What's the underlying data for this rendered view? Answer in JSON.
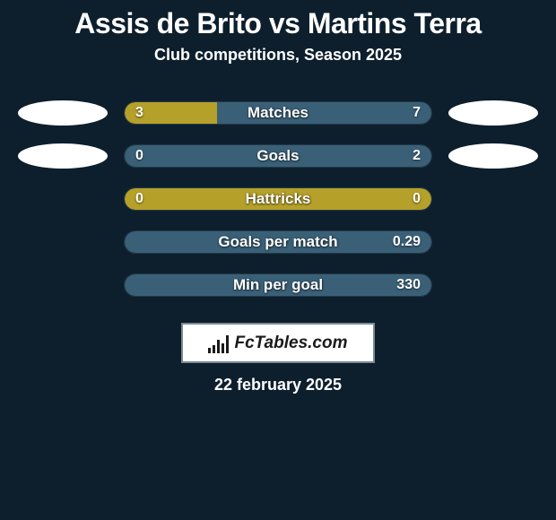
{
  "title": "Assis de Brito vs Martins Terra",
  "subtitle": "Club competitions, Season 2025",
  "background_color": "#0d1f2d",
  "left_color": "#b5a029",
  "right_color": "#3a6078",
  "track_border": "#233846",
  "text_color": "#ffffff",
  "title_fontsize": 32,
  "subtitle_fontsize": 18,
  "bar_label_fontsize": 17,
  "bar_value_fontsize": 16,
  "rows": [
    {
      "label": "Matches",
      "left_val": "3",
      "right_val": "7",
      "left_pct": 30,
      "right_pct": 70,
      "show_avatars": true
    },
    {
      "label": "Goals",
      "left_val": "0",
      "right_val": "2",
      "left_pct": 0,
      "right_pct": 100,
      "show_avatars": true
    },
    {
      "label": "Hattricks",
      "left_val": "0",
      "right_val": "0",
      "left_pct": 100,
      "right_pct": 0,
      "show_avatars": false
    },
    {
      "label": "Goals per match",
      "left_val": "",
      "right_val": "0.29",
      "left_pct": 0,
      "right_pct": 100,
      "show_avatars": false
    },
    {
      "label": "Min per goal",
      "left_val": "",
      "right_val": "330",
      "left_pct": 0,
      "right_pct": 100,
      "show_avatars": false
    }
  ],
  "logo_text": "FcTables.com",
  "logo_bars_heights": [
    6,
    9,
    15,
    11,
    20
  ],
  "date": "22 february 2025"
}
